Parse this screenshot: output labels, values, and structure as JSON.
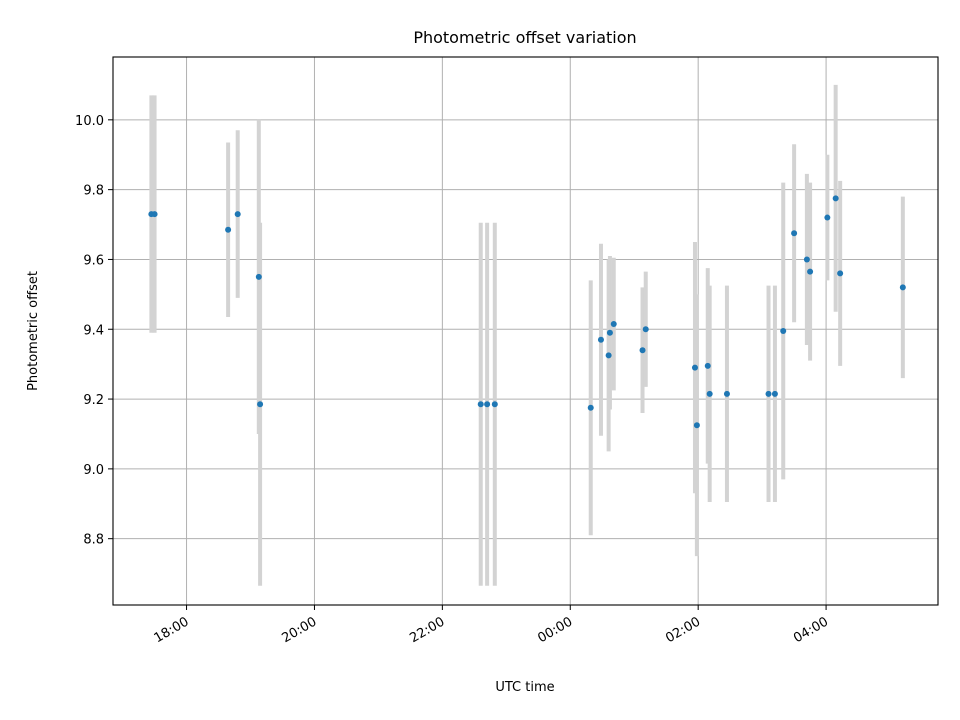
{
  "chart_data": {
    "type": "scatter",
    "title": "Photometric offset variation",
    "xlabel": "UTC time",
    "ylabel": "Photometric offset",
    "grid": true,
    "x_unit": "hours since 00:00 UTC",
    "xlim": [
      -7.15,
      5.75
    ],
    "ylim": [
      8.61,
      10.18
    ],
    "x_ticks": [
      {
        "value": -6,
        "label": "18:00"
      },
      {
        "value": -4,
        "label": "20:00"
      },
      {
        "value": -2,
        "label": "22:00"
      },
      {
        "value": 0,
        "label": "00:00"
      },
      {
        "value": 2,
        "label": "02:00"
      },
      {
        "value": 4,
        "label": "04:00"
      }
    ],
    "y_ticks": [
      {
        "value": 8.8,
        "label": "8.8"
      },
      {
        "value": 9.0,
        "label": "9.0"
      },
      {
        "value": 9.2,
        "label": "9.2"
      },
      {
        "value": 9.4,
        "label": "9.4"
      },
      {
        "value": 9.6,
        "label": "9.6"
      },
      {
        "value": 9.8,
        "label": "9.8"
      },
      {
        "value": 10.0,
        "label": "10.0"
      }
    ],
    "marker_color": "#1f77b4",
    "errorbar_color": "#d3d3d3",
    "points": [
      {
        "x": -6.55,
        "y": 9.73,
        "err": 0.34
      },
      {
        "x": -6.5,
        "y": 9.73,
        "err": 0.34
      },
      {
        "x": -5.35,
        "y": 9.685,
        "err": 0.25
      },
      {
        "x": -5.2,
        "y": 9.73,
        "err": 0.24
      },
      {
        "x": -4.87,
        "y": 9.55,
        "err": 0.45
      },
      {
        "x": -4.85,
        "y": 9.185,
        "err": 0.52
      },
      {
        "x": -1.4,
        "y": 9.185,
        "err": 0.52
      },
      {
        "x": -1.3,
        "y": 9.185,
        "err": 0.52
      },
      {
        "x": -1.18,
        "y": 9.185,
        "err": 0.52
      },
      {
        "x": 0.32,
        "y": 9.175,
        "err": 0.365
      },
      {
        "x": 0.48,
        "y": 9.37,
        "err": 0.275
      },
      {
        "x": 0.6,
        "y": 9.325,
        "err": 0.275
      },
      {
        "x": 0.62,
        "y": 9.39,
        "err": 0.22
      },
      {
        "x": 0.68,
        "y": 9.415,
        "err": 0.19
      },
      {
        "x": 1.13,
        "y": 9.34,
        "err": 0.18
      },
      {
        "x": 1.18,
        "y": 9.4,
        "err": 0.165
      },
      {
        "x": 1.95,
        "y": 9.29,
        "err": 0.36
      },
      {
        "x": 1.98,
        "y": 9.125,
        "err": 0.375
      },
      {
        "x": 2.15,
        "y": 9.295,
        "err": 0.28
      },
      {
        "x": 2.18,
        "y": 9.215,
        "err": 0.31
      },
      {
        "x": 2.45,
        "y": 9.215,
        "err": 0.31
      },
      {
        "x": 3.1,
        "y": 9.215,
        "err": 0.31
      },
      {
        "x": 3.2,
        "y": 9.215,
        "err": 0.31
      },
      {
        "x": 3.33,
        "y": 9.395,
        "err": 0.425
      },
      {
        "x": 3.5,
        "y": 9.675,
        "err": 0.255
      },
      {
        "x": 3.7,
        "y": 9.6,
        "err": 0.245
      },
      {
        "x": 3.75,
        "y": 9.565,
        "err": 0.255
      },
      {
        "x": 4.02,
        "y": 9.72,
        "err": 0.18
      },
      {
        "x": 4.15,
        "y": 9.775,
        "err": 0.325
      },
      {
        "x": 4.22,
        "y": 9.56,
        "err": 0.265
      },
      {
        "x": 5.2,
        "y": 9.52,
        "err": 0.26
      }
    ]
  }
}
